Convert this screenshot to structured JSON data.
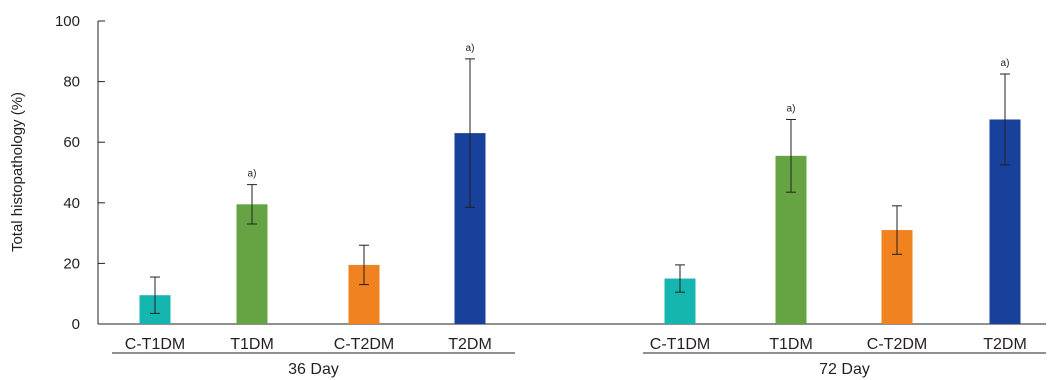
{
  "chart_data": {
    "type": "bar",
    "ylabel": "Total histopathology (%)",
    "ylim": [
      0,
      100
    ],
    "yticks": [
      "0",
      "20",
      "40",
      "60",
      "80",
      "100"
    ],
    "categories": [
      "C-T1DM",
      "T1DM",
      "C-T2DM",
      "T2DM"
    ],
    "colors": [
      "#15b5b0",
      "#66a443",
      "#f0821f",
      "#17419a"
    ],
    "groups": [
      {
        "name": "36 Day",
        "values": [
          9.5,
          39.5,
          19.5,
          63
        ],
        "errors": [
          6,
          6.5,
          6.5,
          24.5
        ],
        "annotations": [
          "",
          "a)",
          "",
          "a)"
        ]
      },
      {
        "name": "72 Day",
        "values": [
          15,
          55.5,
          31,
          67.5
        ],
        "errors": [
          4.5,
          12,
          8,
          15
        ],
        "annotations": [
          "",
          "a)",
          "",
          "a)"
        ]
      }
    ]
  }
}
